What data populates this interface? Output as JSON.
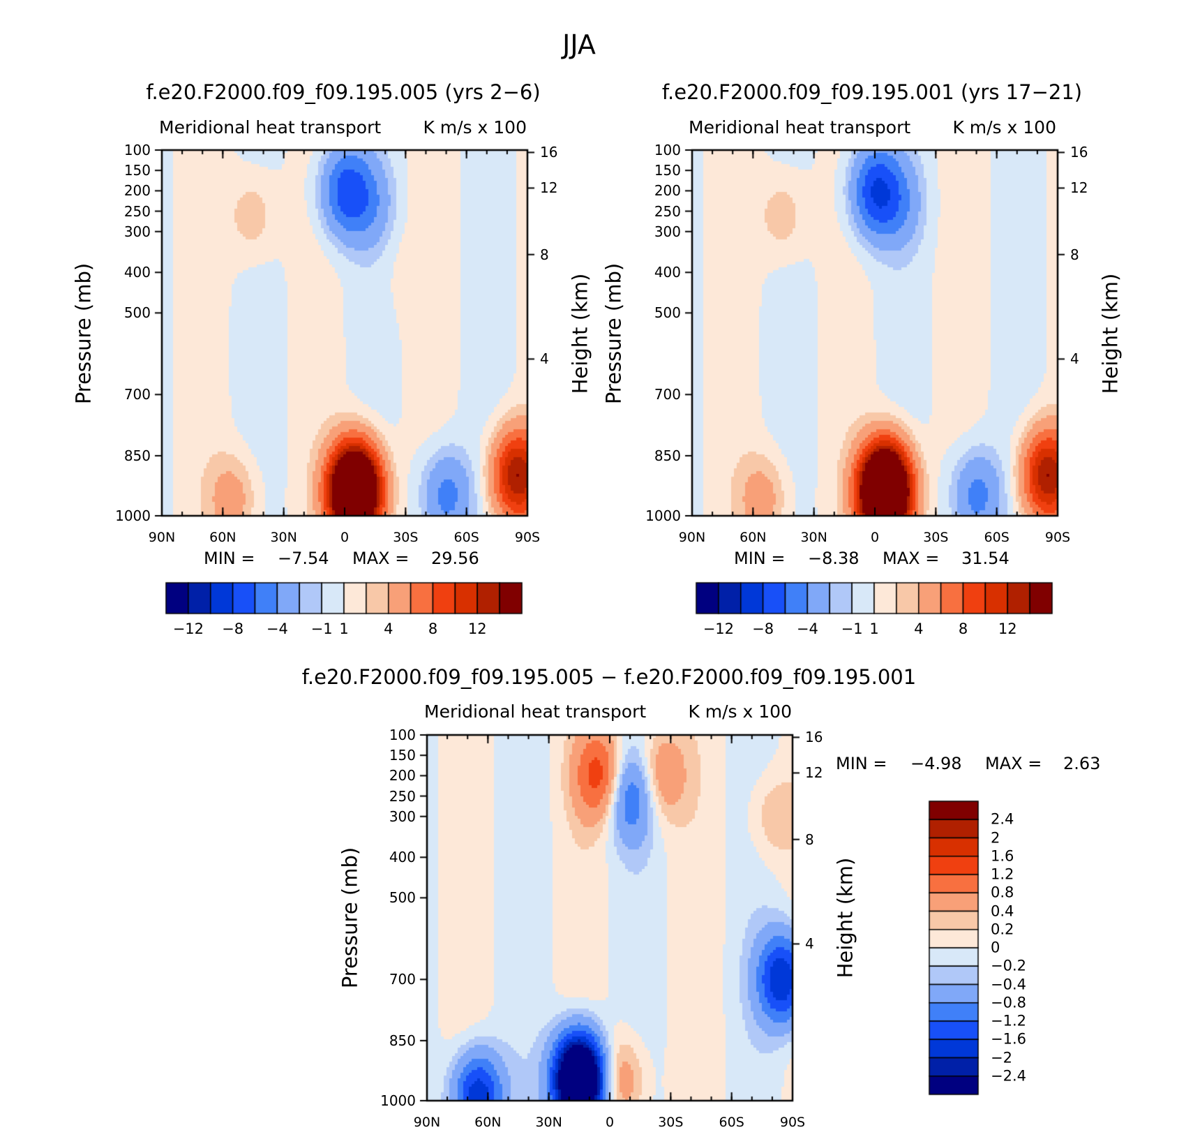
{
  "figure": {
    "title": "JJA",
    "colors": {
      "absolute": [
        "#000080",
        "#0020a8",
        "#0038d8",
        "#1850f8",
        "#4080f8",
        "#80a8f8",
        "#b0c8f8",
        "#d8e8f8",
        "#fde8d8",
        "#f8c8a8",
        "#f8a078",
        "#f87040",
        "#f04010",
        "#d83000",
        "#b02000",
        "#800000"
      ],
      "difference": [
        "#000080",
        "#0020a8",
        "#0038d8",
        "#1850f8",
        "#4080f8",
        "#80a8f8",
        "#b0c8f8",
        "#d8e8f8",
        "#fde8d8",
        "#f8c8a8",
        "#f8a078",
        "#f87040",
        "#f04010",
        "#d83000",
        "#b02000",
        "#800000"
      ]
    }
  },
  "chart_data": [
    {
      "type": "heatmap",
      "title": "f.e20.F2000.f09_f09.195.005 (yrs 2−6)",
      "subtitle_left": "Meridional heat transport",
      "subtitle_right": "K m/s x 100",
      "xlabel": "",
      "ylabel": "Pressure (mb)",
      "ylabel_right": "Height (km)",
      "x_ticks": [
        "90N",
        "60N",
        "30N",
        "0",
        "30S",
        "60S",
        "90S"
      ],
      "y_ticks": [
        "100",
        "150",
        "200",
        "250",
        "300",
        "400",
        "500",
        "700",
        "850",
        "1000"
      ],
      "y_ticks_right": [
        "16",
        "12",
        "8",
        "4"
      ],
      "ylim": [
        1000,
        100
      ],
      "min_label": "MIN =",
      "min_value": "−7.54",
      "max_label": "MAX =",
      "max_value": "29.56",
      "colorbar_labels": [
        "−12",
        "−8",
        "−4",
        "−1",
        "1",
        "4",
        "8",
        "12"
      ],
      "features": [
        {
          "lat": 0,
          "p": 200,
          "value": -6.5
        },
        {
          "lat": -12,
          "p": 230,
          "value": -3
        },
        {
          "lat": 45,
          "p": 260,
          "value": 2
        },
        {
          "lat": -5,
          "p": 940,
          "value": 29.56
        },
        {
          "lat": -50,
          "p": 950,
          "value": -5
        },
        {
          "lat": -85,
          "p": 900,
          "value": 12
        },
        {
          "lat": 55,
          "p": 960,
          "value": 3
        },
        {
          "lat": -30,
          "p": 400,
          "value": 0.5
        }
      ]
    },
    {
      "type": "heatmap",
      "title": "f.e20.F2000.f09_f09.195.001 (yrs 17−21)",
      "subtitle_left": "Meridional heat transport",
      "subtitle_right": "K m/s x 100",
      "xlabel": "",
      "ylabel": "Pressure (mb)",
      "ylabel_right": "Height (km)",
      "x_ticks": [
        "90N",
        "60N",
        "30N",
        "0",
        "30S",
        "60S",
        "90S"
      ],
      "y_ticks": [
        "100",
        "150",
        "200",
        "250",
        "300",
        "400",
        "500",
        "700",
        "850",
        "1000"
      ],
      "y_ticks_right": [
        "16",
        "12",
        "8",
        "4"
      ],
      "ylim": [
        1000,
        100
      ],
      "min_label": "MIN =",
      "min_value": "−8.38",
      "max_label": "MAX =",
      "max_value": "31.54",
      "colorbar_labels": [
        "−12",
        "−8",
        "−4",
        "−1",
        "1",
        "4",
        "8",
        "12"
      ],
      "features": [
        {
          "lat": 0,
          "p": 200,
          "value": -7.5
        },
        {
          "lat": -12,
          "p": 230,
          "value": -3
        },
        {
          "lat": 45,
          "p": 260,
          "value": 2
        },
        {
          "lat": -5,
          "p": 940,
          "value": 31.54
        },
        {
          "lat": -50,
          "p": 950,
          "value": -5
        },
        {
          "lat": -85,
          "p": 900,
          "value": 12
        },
        {
          "lat": 55,
          "p": 960,
          "value": 3
        }
      ]
    },
    {
      "type": "heatmap",
      "title": "f.e20.F2000.f09_f09.195.005 − f.e20.F2000.f09_f09.195.001",
      "subtitle_left": "Meridional heat transport",
      "subtitle_right": "K m/s x 100",
      "xlabel": "",
      "ylabel": "Pressure (mb)",
      "ylabel_right": "Height (km)",
      "x_ticks": [
        "90N",
        "60N",
        "30N",
        "0",
        "30S",
        "60S",
        "90S"
      ],
      "y_ticks": [
        "100",
        "150",
        "200",
        "250",
        "300",
        "400",
        "500",
        "700",
        "850",
        "1000"
      ],
      "y_ticks_right": [
        "16",
        "12",
        "8",
        "4"
      ],
      "ylim": [
        1000,
        100
      ],
      "min_label": "MIN =",
      "min_value": "−4.98",
      "max_label": "MAX =",
      "max_value": "2.63",
      "colorbar_labels": [
        "2.4",
        "2",
        "1.6",
        "1.2",
        "0.8",
        "0.4",
        "0.2",
        "0",
        "−0.2",
        "−0.4",
        "−0.8",
        "−1.2",
        "−1.6",
        "−2",
        "−2.4"
      ],
      "features": [
        {
          "lat": 5,
          "p": 200,
          "value": 1.4
        },
        {
          "lat": -10,
          "p": 250,
          "value": -1.2
        },
        {
          "lat": -25,
          "p": 200,
          "value": 0.8
        },
        {
          "lat": 15,
          "p": 950,
          "value": -4.98
        },
        {
          "lat": -5,
          "p": 950,
          "value": 0.8
        },
        {
          "lat": -85,
          "p": 700,
          "value": -2
        },
        {
          "lat": 65,
          "p": 990,
          "value": -2
        },
        {
          "lat": -80,
          "p": 300,
          "value": 0.4
        }
      ]
    }
  ]
}
